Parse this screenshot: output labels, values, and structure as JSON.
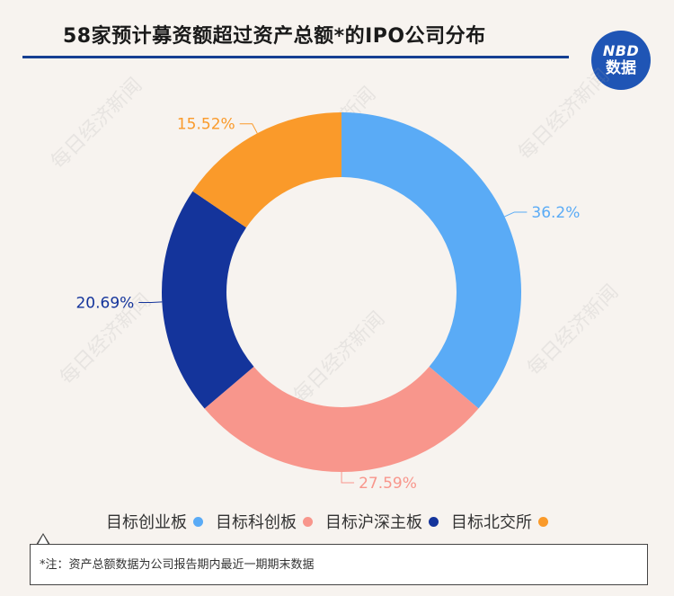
{
  "title": "58家预计募资额超过资产总额*的IPO公司分布",
  "logo": {
    "line1": "NBD",
    "line2": "数据",
    "watermark": "每日经济新闻"
  },
  "colors": {
    "title_rule": "#153f92",
    "logo_bg": "#1f55b5"
  },
  "chart_data": {
    "type": "pie",
    "style": "donut",
    "categories": [
      "目标创业板",
      "目标科创板",
      "目标沪深主板",
      "目标北交所"
    ],
    "values": [
      36.2,
      27.59,
      20.69,
      15.52
    ],
    "labels": [
      "36.2%",
      "27.59%",
      "20.69%",
      "15.52%"
    ],
    "colors": [
      "#5aabf6",
      "#f8968c",
      "#14349b",
      "#fa9a2a"
    ],
    "legend_position": "bottom"
  },
  "footnote": "*注：资产总额数据为公司报告期内最近一期期末数据"
}
